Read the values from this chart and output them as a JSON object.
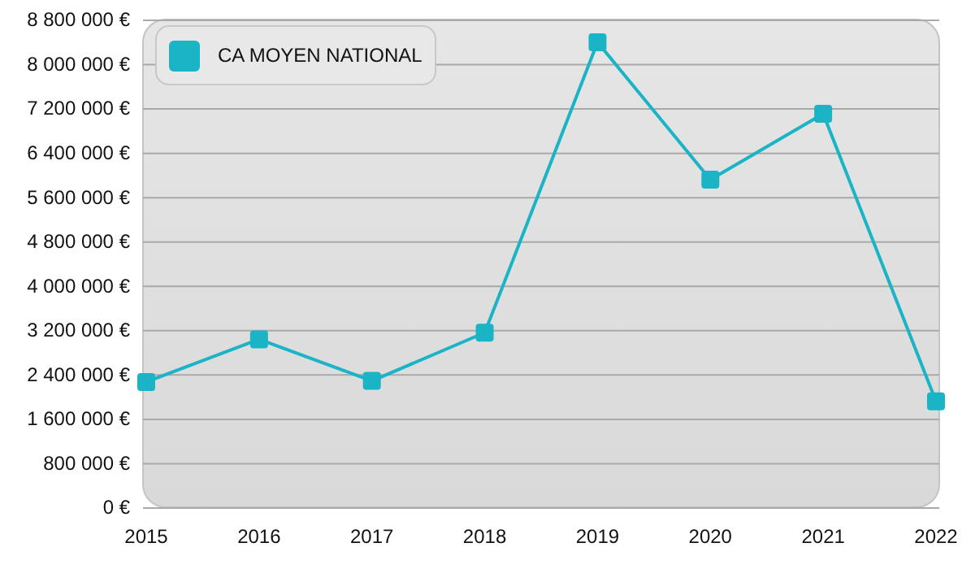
{
  "chart_data": {
    "type": "line",
    "categories": [
      "2015",
      "2016",
      "2017",
      "2018",
      "2019",
      "2020",
      "2021",
      "2022"
    ],
    "series": [
      {
        "name": "CA MOYEN NATIONAL",
        "color": "#1ab4c6",
        "values": [
          2260000,
          3030000,
          2280000,
          3150000,
          8390000,
          5910000,
          7100000,
          1910000
        ]
      }
    ],
    "ylim": [
      0,
      8800000
    ],
    "yticks": [
      {
        "value": 0,
        "label": "0 €"
      },
      {
        "value": 800000,
        "label": "800 000 €"
      },
      {
        "value": 1600000,
        "label": "1 600 000 €"
      },
      {
        "value": 2400000,
        "label": "2 400 000 €"
      },
      {
        "value": 3200000,
        "label": "3 200 000 €"
      },
      {
        "value": 4000000,
        "label": "4 000 000 €"
      },
      {
        "value": 4800000,
        "label": "4 800 000 €"
      },
      {
        "value": 5600000,
        "label": "5 600 000 €"
      },
      {
        "value": 6400000,
        "label": "6 400 000 €"
      },
      {
        "value": 7200000,
        "label": "7 200 000 €"
      },
      {
        "value": 8000000,
        "label": "8 000 000 €"
      },
      {
        "value": 8800000,
        "label": "8 800 000 €"
      }
    ],
    "grid": "y",
    "legend": "top left",
    "marker": "square",
    "line_style": "solid"
  }
}
